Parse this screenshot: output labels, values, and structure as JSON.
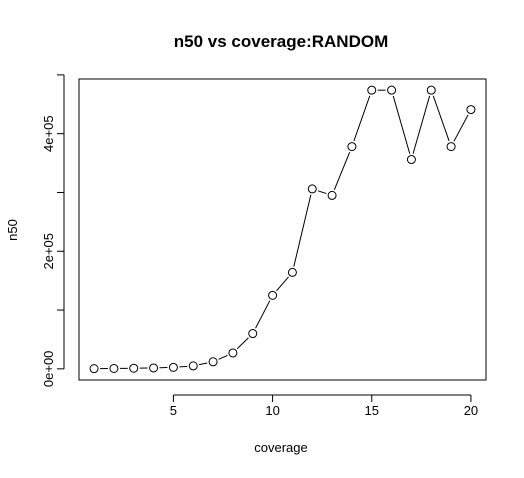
{
  "chart_data": {
    "type": "line",
    "title": "n50 vs coverage:RANDOM",
    "xlabel": "coverage",
    "ylabel": "n50",
    "xlim": [
      0.24,
      20.76
    ],
    "ylim": [
      -19000,
      493000
    ],
    "x_ticks": [
      5,
      10,
      15,
      20
    ],
    "x_tick_labels": [
      "5",
      "10",
      "15",
      "20"
    ],
    "y_ticks": [
      0,
      100000,
      200000,
      300000,
      400000,
      500000
    ],
    "y_tick_labels": [
      "0e+00",
      "",
      "2e+05",
      "",
      "4e+05",
      ""
    ],
    "grid": false,
    "legend": "none",
    "marker": "open-circle",
    "series": [
      {
        "x": [
          1,
          2,
          3,
          4,
          5,
          6,
          7,
          8,
          9,
          10,
          11,
          12,
          13,
          14,
          15,
          16,
          17,
          18,
          19,
          20
        ],
        "y": [
          300,
          600,
          1000,
          1500,
          2500,
          5000,
          12000,
          27000,
          60000,
          125000,
          164000,
          306000,
          295000,
          378000,
          474000,
          474000,
          356000,
          474000,
          378000,
          441000
        ]
      }
    ]
  }
}
